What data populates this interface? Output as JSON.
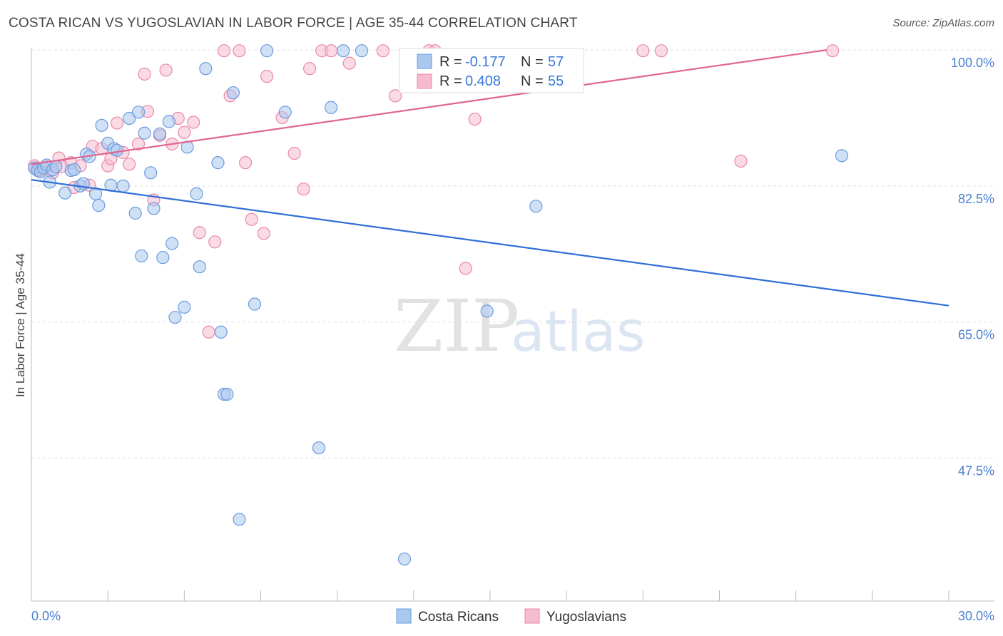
{
  "title": "COSTA RICAN VS YUGOSLAVIAN IN LABOR FORCE | AGE 35-44 CORRELATION CHART",
  "source": "Source: ZipAtlas.com",
  "watermark": {
    "zip": "ZIP",
    "atlas": "atlas"
  },
  "colors": {
    "blue_fill": "#aac8ee",
    "blue_stroke": "#6b9be0",
    "blue_line": "#2f6fd6",
    "pink_fill": "#f6bccd",
    "pink_stroke": "#e88aa8",
    "pink_line": "#e06690",
    "tick": "#4a7fd1",
    "grid": "#dddddd"
  },
  "chart_data": {
    "type": "scatter",
    "title": "COSTA RICAN VS YUGOSLAVIAN IN LABOR FORCE | AGE 35-44 CORRELATION CHART",
    "xlabel": "",
    "ylabel": "In Labor Force | Age 35-44",
    "xlim": [
      0,
      30
    ],
    "ylim": [
      29,
      100
    ],
    "x_tick_labels": [
      "0.0%",
      "30.0%"
    ],
    "y_ticks": [
      100,
      82.5,
      65,
      47.5
    ],
    "y_tick_labels": [
      "100.0%",
      "82.5%",
      "65.0%",
      "47.5%"
    ],
    "legend": [
      {
        "name": "Costa Ricans",
        "r_label": "R =",
        "r": "-0.177",
        "n_label": "N =",
        "n": "57"
      },
      {
        "name": "Yugoslavians",
        "r_label": "R =",
        "r": "0.408",
        "n_label": "N =",
        "n": "55"
      }
    ],
    "series": [
      {
        "name": "Costa Ricans",
        "trend": {
          "x": [
            0,
            30
          ],
          "y": [
            83.3,
            67.1
          ]
        },
        "points": [
          [
            0.1,
            84.8
          ],
          [
            0.2,
            84.5
          ],
          [
            0.3,
            84.3
          ],
          [
            0.4,
            84.8
          ],
          [
            0.5,
            85.2
          ],
          [
            0.6,
            83.0
          ],
          [
            0.7,
            84.6
          ],
          [
            0.8,
            85.0
          ],
          [
            1.1,
            81.6
          ],
          [
            1.3,
            84.5
          ],
          [
            1.4,
            84.6
          ],
          [
            1.6,
            82.5
          ],
          [
            1.7,
            82.8
          ],
          [
            1.8,
            86.6
          ],
          [
            1.9,
            86.3
          ],
          [
            2.1,
            81.5
          ],
          [
            2.2,
            80.0
          ],
          [
            2.3,
            90.3
          ],
          [
            2.5,
            88.0
          ],
          [
            2.6,
            82.6
          ],
          [
            2.7,
            87.3
          ],
          [
            2.8,
            87.1
          ],
          [
            3.0,
            82.5
          ],
          [
            3.2,
            91.2
          ],
          [
            3.4,
            79.0
          ],
          [
            3.5,
            92.0
          ],
          [
            3.6,
            73.5
          ],
          [
            3.7,
            89.3
          ],
          [
            3.9,
            84.2
          ],
          [
            4.0,
            79.6
          ],
          [
            4.2,
            89.2
          ],
          [
            4.3,
            73.3
          ],
          [
            4.5,
            90.8
          ],
          [
            4.6,
            75.1
          ],
          [
            4.7,
            65.6
          ],
          [
            5.0,
            66.9
          ],
          [
            5.1,
            87.5
          ],
          [
            5.4,
            81.5
          ],
          [
            5.5,
            72.1
          ],
          [
            5.7,
            97.6
          ],
          [
            6.1,
            85.5
          ],
          [
            6.2,
            63.7
          ],
          [
            6.3,
            55.7
          ],
          [
            6.4,
            55.7
          ],
          [
            6.6,
            94.5
          ],
          [
            6.8,
            39.6
          ],
          [
            7.3,
            67.3
          ],
          [
            7.7,
            99.9
          ],
          [
            8.3,
            92.0
          ],
          [
            9.4,
            48.8
          ],
          [
            9.8,
            92.6
          ],
          [
            10.2,
            99.9
          ],
          [
            10.8,
            99.9
          ],
          [
            12.2,
            34.5
          ],
          [
            14.9,
            66.4
          ],
          [
            16.5,
            79.9
          ],
          [
            26.5,
            86.4
          ]
        ]
      },
      {
        "name": "Yugoslavians",
        "trend": {
          "x": [
            0,
            26.0
          ],
          "y": [
            85.3,
            100.0
          ]
        },
        "points": [
          [
            0.1,
            85.1
          ],
          [
            0.2,
            84.8
          ],
          [
            0.3,
            84.5
          ],
          [
            0.5,
            85.0
          ],
          [
            0.7,
            84.2
          ],
          [
            0.9,
            86.1
          ],
          [
            1.0,
            85.0
          ],
          [
            1.3,
            85.5
          ],
          [
            1.4,
            82.3
          ],
          [
            1.6,
            85.1
          ],
          [
            1.9,
            82.6
          ],
          [
            2.0,
            87.6
          ],
          [
            2.3,
            87.3
          ],
          [
            2.5,
            85.1
          ],
          [
            2.6,
            86.0
          ],
          [
            2.8,
            90.6
          ],
          [
            3.0,
            86.8
          ],
          [
            3.2,
            85.3
          ],
          [
            3.5,
            87.9
          ],
          [
            3.7,
            96.9
          ],
          [
            3.8,
            92.1
          ],
          [
            4.0,
            80.7
          ],
          [
            4.2,
            89.0
          ],
          [
            4.4,
            97.4
          ],
          [
            4.6,
            87.9
          ],
          [
            4.8,
            91.2
          ],
          [
            5.0,
            89.4
          ],
          [
            5.3,
            90.7
          ],
          [
            5.5,
            76.5
          ],
          [
            5.8,
            63.7
          ],
          [
            6.0,
            75.3
          ],
          [
            6.3,
            99.9
          ],
          [
            6.5,
            94.1
          ],
          [
            6.8,
            99.9
          ],
          [
            7.0,
            85.5
          ],
          [
            7.2,
            78.2
          ],
          [
            7.6,
            76.4
          ],
          [
            7.7,
            96.6
          ],
          [
            8.2,
            91.3
          ],
          [
            8.6,
            86.7
          ],
          [
            8.9,
            82.1
          ],
          [
            9.1,
            97.6
          ],
          [
            9.5,
            99.9
          ],
          [
            9.8,
            99.9
          ],
          [
            10.4,
            98.3
          ],
          [
            11.5,
            99.9
          ],
          [
            11.9,
            94.1
          ],
          [
            13.0,
            99.9
          ],
          [
            13.2,
            99.9
          ],
          [
            14.2,
            71.9
          ],
          [
            14.5,
            91.1
          ],
          [
            20.0,
            99.9
          ],
          [
            20.6,
            99.9
          ],
          [
            23.2,
            85.7
          ],
          [
            26.2,
            99.9
          ]
        ]
      }
    ]
  }
}
